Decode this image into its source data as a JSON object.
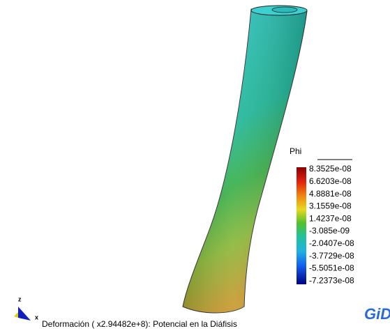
{
  "legend": {
    "title": "Phi",
    "labels": [
      "8.3525e-08",
      "6.6203e-08",
      "4.8881e-08",
      "3.1559e-08",
      "1.4237e-08",
      "-3.085e-09",
      "-2.0407e-08",
      "-3.7729e-08",
      "-5.5051e-08",
      "-7.2373e-08"
    ]
  },
  "axes": {
    "z": "z",
    "x": "x"
  },
  "caption": "Deformación ( x2.94482e+8): Potencial en la Diáfisis"
}
